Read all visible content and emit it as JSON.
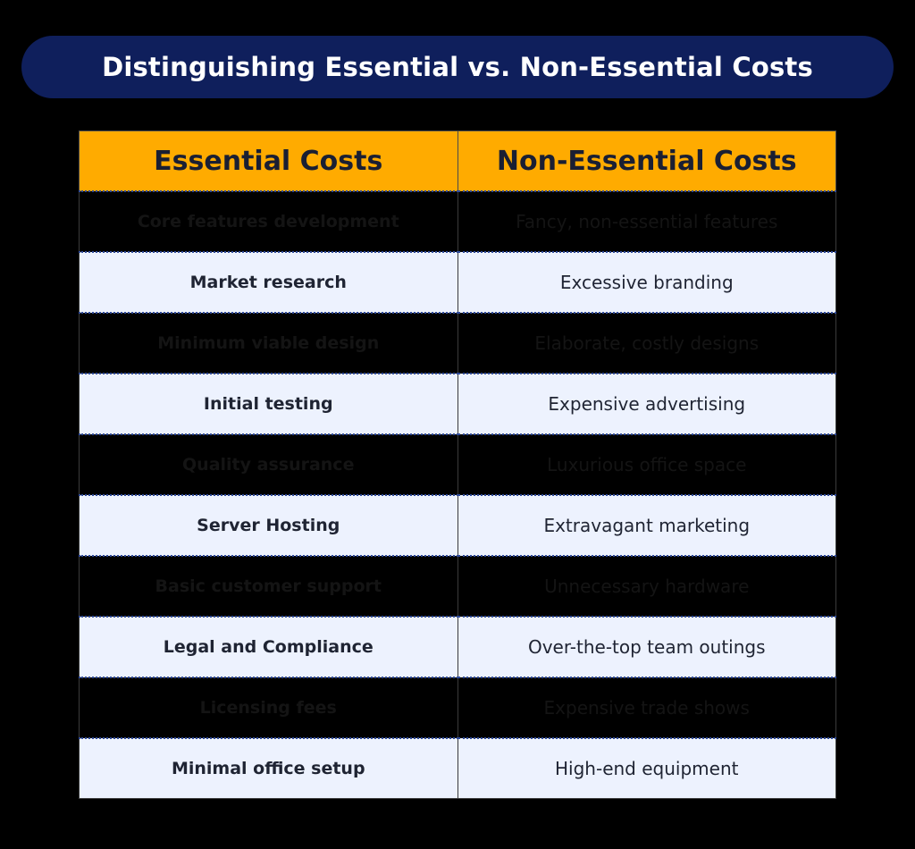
{
  "title": "Distinguishing Essential vs. Non-Essential Costs",
  "table": {
    "headers": [
      "Essential Costs",
      "Non-Essential Costs"
    ],
    "rows": [
      {
        "essential": "Core features development",
        "non_essential": "Fancy, non-essential features"
      },
      {
        "essential": "Market research",
        "non_essential": "Excessive branding"
      },
      {
        "essential": "Minimum viable design",
        "non_essential": "Elaborate, costly designs"
      },
      {
        "essential": "Initial testing",
        "non_essential": "Expensive advertising"
      },
      {
        "essential": "Quality assurance",
        "non_essential": "Luxurious office space"
      },
      {
        "essential": "Server Hosting",
        "non_essential": "Extravagant marketing"
      },
      {
        "essential": "Basic customer support",
        "non_essential": "Unnecessary hardware"
      },
      {
        "essential": "Legal and Compliance",
        "non_essential": "Over-the-top team outings"
      },
      {
        "essential": "Licensing fees",
        "non_essential": "Expensive trade shows"
      },
      {
        "essential": "Minimal office setup",
        "non_essential": "High-end equipment"
      }
    ]
  },
  "colors": {
    "title_banner": "#0f1f5c",
    "header_background": "#ffab00",
    "light_row_background": "#edf2fe",
    "dark_row_background": "#000000"
  }
}
